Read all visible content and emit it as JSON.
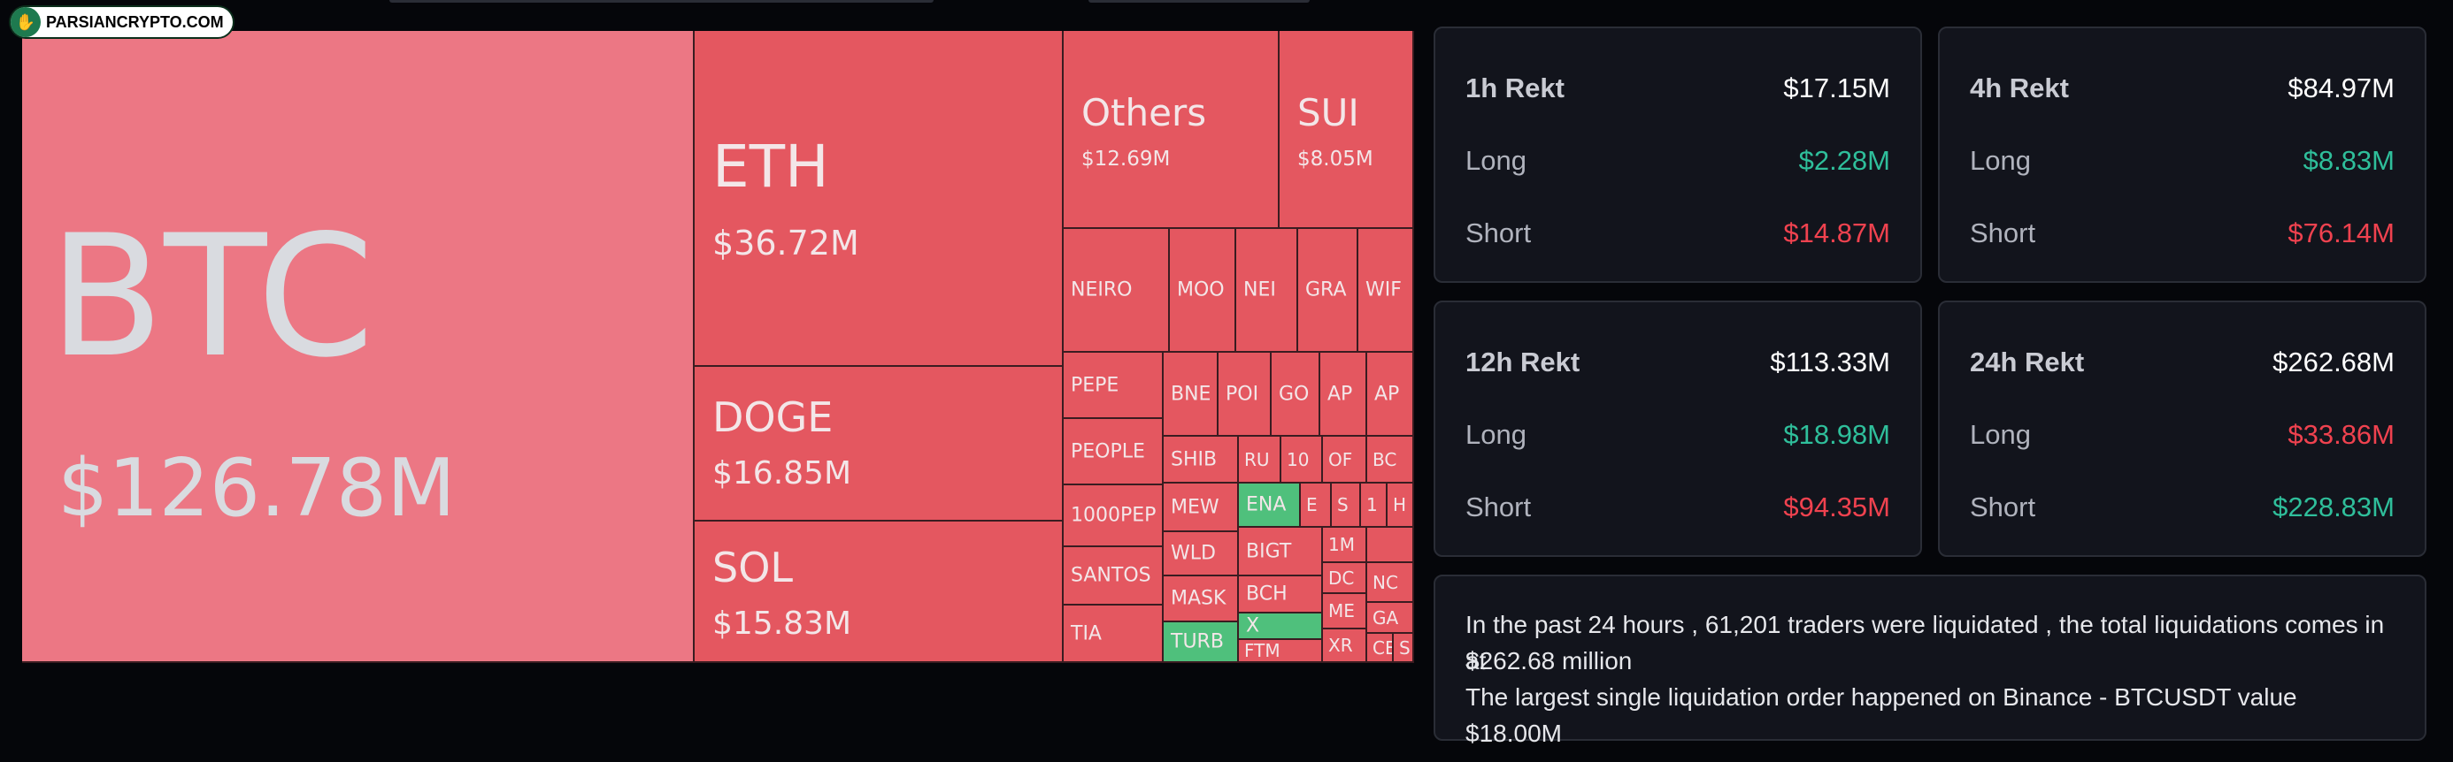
{
  "watermark": {
    "text": "PARSIANCRYPTO.COM",
    "icon": "hand-logo-icon"
  },
  "treemap": {
    "btc": {
      "name": "BTC",
      "value": "$126.78M",
      "color": "#ec7784"
    },
    "eth": {
      "name": "ETH",
      "value": "$36.72M"
    },
    "doge": {
      "name": "DOGE",
      "value": "$16.85M"
    },
    "sol": {
      "name": "SOL",
      "value": "$15.83M"
    },
    "others": {
      "name": "Others",
      "value": "$12.69M"
    },
    "sui": {
      "name": "SUI",
      "value": "$8.05M"
    },
    "small": [
      "NEIRO",
      "MOO",
      "NEI",
      "GRA",
      "WIF",
      "PEPE",
      "BNE",
      "POI",
      "GO",
      "AP",
      "AP",
      "PEOPLE",
      "SHIB",
      "RU",
      "10",
      "OF",
      "BC",
      "1000PEP",
      "MEW",
      "ENA",
      "E",
      "S",
      "1",
      "H",
      "SANTOS",
      "WLD",
      "BIGT",
      "1M",
      "MASK",
      "BCH",
      "DC",
      "NC",
      "TIA",
      "TURB",
      "X",
      "ME",
      "GA",
      "FTM",
      "XR",
      "CE",
      "S"
    ],
    "green_tiles": [
      "ENA",
      "TURB",
      "X"
    ],
    "tile_color": "#e45760",
    "green_color": "#4fc07c"
  },
  "cards": [
    {
      "title": "1h Rekt",
      "total": "$17.15M",
      "long_label": "Long",
      "long": "$2.28M",
      "short_label": "Short",
      "short": "$14.87M"
    },
    {
      "title": "4h Rekt",
      "total": "$84.97M",
      "long_label": "Long",
      "long": "$8.83M",
      "short_label": "Short",
      "short": "$76.14M"
    },
    {
      "title": "12h Rekt",
      "total": "$113.33M",
      "long_label": "Long",
      "long": "$18.98M",
      "short_label": "Short",
      "short": "$94.35M"
    },
    {
      "title": "24h Rekt",
      "total": "$262.68M",
      "long_label": "Long",
      "long": "$33.86M",
      "short_label": "Short",
      "short": "$228.83M"
    }
  ],
  "summary": {
    "line1": "In the past 24 hours , 61,201 traders were liquidated , the total liquidations comes in at",
    "line2": "$262.68 million",
    "line3": "The largest single liquidation order happened on Binance - BTCUSDT value $18.00M"
  },
  "colors": {
    "positive": "#2fbf9b",
    "negative": "#f0424f",
    "card_bg": "#12141c"
  }
}
